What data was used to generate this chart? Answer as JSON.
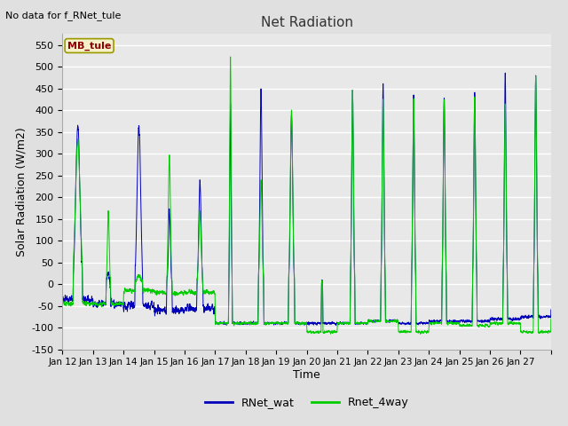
{
  "title": "Net Radiation",
  "xlabel": "Time",
  "ylabel": "Solar Radiation (W/m2)",
  "no_data_text": "No data for f_RNet_tule",
  "legend_box_text": "MB_tule",
  "ylim": [
    -150,
    575
  ],
  "yticks": [
    -150,
    -100,
    -50,
    0,
    50,
    100,
    150,
    200,
    250,
    300,
    350,
    400,
    450,
    500,
    550
  ],
  "line1_color": "#0000bb",
  "line2_color": "#00cc00",
  "line1_label": "RNet_wat",
  "line2_label": "Rnet_4way",
  "bg_color": "#e0e0e0",
  "plot_bg_color": "#e8e8e8",
  "xtick_labels": [
    "Jan 12",
    "Jan 13",
    "Jan 14",
    "Jan 15",
    "Jan 16",
    "Jan 17",
    "Jan 18",
    "Jan 19",
    "Jan 20",
    "Jan 21",
    "Jan 22",
    "Jan 23",
    "Jan 24",
    "Jan 25",
    "Jan 26",
    "Jan 27"
  ],
  "n_days": 16,
  "points_per_day": 288
}
